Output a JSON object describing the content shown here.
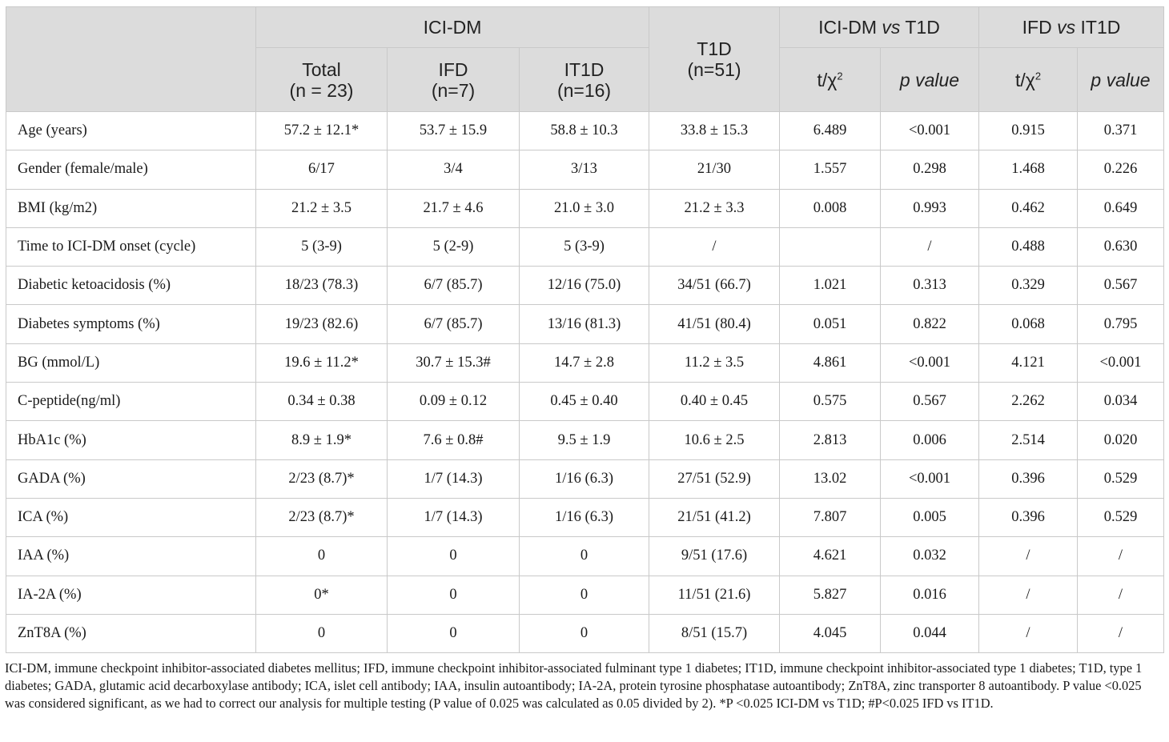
{
  "header": {
    "group_icidm": "ICI-DM",
    "group_t1d_line1": "T1D",
    "group_t1d_line2": "(n=51)",
    "group_cmp1_a": "ICI-DM",
    "group_cmp1_vs": "vs",
    "group_cmp1_b": "T1D",
    "group_cmp2_a": "IFD",
    "group_cmp2_vs": "vs",
    "group_cmp2_b": "IT1D",
    "total_line1": "Total",
    "total_line2": "(n = 23)",
    "ifd_line1": "IFD",
    "ifd_line2": "(n=7)",
    "it1d_line1": "IT1D",
    "it1d_line2": "(n=16)",
    "stat_label": "t/χ",
    "stat_sup": "2",
    "pvalue_label": "p value"
  },
  "rows": [
    {
      "label": "Age (years)",
      "total": "57.2 ± 12.1*",
      "ifd": "53.7 ± 15.9",
      "it1d": "58.8 ± 10.3",
      "t1d": "33.8 ± 15.3",
      "t1": "6.489",
      "p1": "<0.001",
      "t2": "0.915",
      "p2": "0.371"
    },
    {
      "label": "Gender (female/male)",
      "total": "6/17",
      "ifd": "3/4",
      "it1d": "3/13",
      "t1d": "21/30",
      "t1": "1.557",
      "p1": "0.298",
      "t2": "1.468",
      "p2": "0.226"
    },
    {
      "label": "BMI (kg/m2)",
      "total": "21.2 ± 3.5",
      "ifd": "21.7 ± 4.6",
      "it1d": "21.0 ± 3.0",
      "t1d": "21.2 ± 3.3",
      "t1": "0.008",
      "p1": "0.993",
      "t2": "0.462",
      "p2": "0.649"
    },
    {
      "label": "Time to ICI-DM onset (cycle)",
      "total": "5 (3-9)",
      "ifd": "5 (2-9)",
      "it1d": "5 (3-9)",
      "t1d": "/",
      "t1": "",
      "p1": "/",
      "t2": "0.488",
      "p2": "0.630"
    },
    {
      "label": "Diabetic ketoacidosis (%)",
      "total": "18/23 (78.3)",
      "ifd": "6/7 (85.7)",
      "it1d": "12/16 (75.0)",
      "t1d": "34/51 (66.7)",
      "t1": "1.021",
      "p1": "0.313",
      "t2": "0.329",
      "p2": "0.567"
    },
    {
      "label": "Diabetes symptoms (%)",
      "total": "19/23 (82.6)",
      "ifd": "6/7 (85.7)",
      "it1d": "13/16 (81.3)",
      "t1d": "41/51 (80.4)",
      "t1": "0.051",
      "p1": "0.822",
      "t2": "0.068",
      "p2": "0.795"
    },
    {
      "label": "BG (mmol/L)",
      "total": "19.6 ± 11.2*",
      "ifd": "30.7 ± 15.3#",
      "it1d": "14.7 ± 2.8",
      "t1d": "11.2 ± 3.5",
      "t1": "4.861",
      "p1": "<0.001",
      "t2": "4.121",
      "p2": "<0.001"
    },
    {
      "label": "C-peptide(ng/ml)",
      "total": "0.34 ± 0.38",
      "ifd": "0.09 ± 0.12",
      "it1d": "0.45 ± 0.40",
      "t1d": "0.40 ± 0.45",
      "t1": "0.575",
      "p1": "0.567",
      "t2": "2.262",
      "p2": "0.034"
    },
    {
      "label": "HbA1c (%)",
      "total": "8.9 ± 1.9*",
      "ifd": "7.6 ± 0.8#",
      "it1d": "9.5 ± 1.9",
      "t1d": "10.6 ± 2.5",
      "t1": "2.813",
      "p1": "0.006",
      "t2": "2.514",
      "p2": "0.020"
    },
    {
      "label": "GADA (%)",
      "total": "2/23 (8.7)*",
      "ifd": "1/7 (14.3)",
      "it1d": "1/16 (6.3)",
      "t1d": "27/51 (52.9)",
      "t1": "13.02",
      "p1": "<0.001",
      "t2": "0.396",
      "p2": "0.529"
    },
    {
      "label": "ICA (%)",
      "total": "2/23 (8.7)*",
      "ifd": "1/7 (14.3)",
      "it1d": "1/16 (6.3)",
      "t1d": "21/51 (41.2)",
      "t1": "7.807",
      "p1": "0.005",
      "t2": "0.396",
      "p2": "0.529"
    },
    {
      "label": "IAA (%)",
      "total": "0",
      "ifd": "0",
      "it1d": "0",
      "t1d": "9/51 (17.6)",
      "t1": "4.621",
      "p1": "0.032",
      "t2": "/",
      "p2": "/"
    },
    {
      "label": "IA-2A (%)",
      "total": "0*",
      "ifd": "0",
      "it1d": "0",
      "t1d": "11/51 (21.6)",
      "t1": "5.827",
      "p1": "0.016",
      "t2": "/",
      "p2": "/"
    },
    {
      "label": "ZnT8A (%)",
      "total": "0",
      "ifd": "0",
      "it1d": "0",
      "t1d": "8/51 (15.7)",
      "t1": "4.045",
      "p1": "0.044",
      "t2": "/",
      "p2": "/"
    }
  ],
  "footnote": "ICI-DM, immune checkpoint inhibitor-associated diabetes mellitus; IFD, immune checkpoint inhibitor-associated fulminant type 1 diabetes; IT1D, immune checkpoint inhibitor-associated type 1 diabetes; T1D, type 1 diabetes; GADA, glutamic acid decarboxylase antibody; ICA, islet cell antibody; IAA, insulin autoantibody; IA-2A, protein tyrosine phosphatase autoantibody; ZnT8A, zinc transporter 8 autoantibody. P value <0.025 was considered significant, as we had to correct our analysis for multiple testing (P value of 0.025 was calculated as 0.05 divided by 2). *P <0.025 ICI-DM vs T1D; #P<0.025 IFD vs IT1D."
}
